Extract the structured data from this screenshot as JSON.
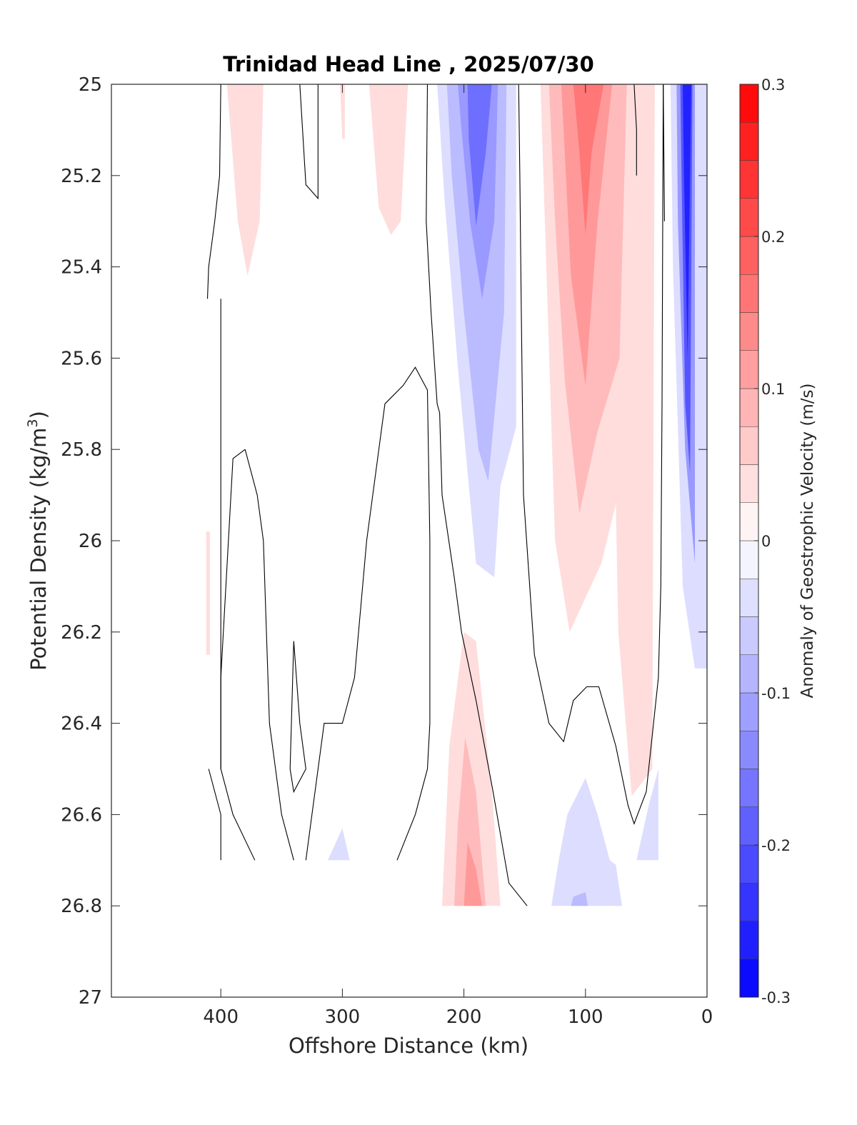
{
  "chart_data": {
    "type": "contourf",
    "title": "Trinidad Head Line , 2025/07/30",
    "xlabel": "Offshore Distance (km)",
    "ylabel_main": "Potential Density (kg/m",
    "ylabel_sup": "3",
    "ylabel_close": ")",
    "xlim": [
      490,
      0
    ],
    "ylim": [
      25,
      27
    ],
    "x_reversed": true,
    "y_reversed": true,
    "xticks": [
      400,
      300,
      200,
      100,
      0
    ],
    "xtick_labels": [
      "400",
      "300",
      "200",
      "100",
      "0"
    ],
    "yticks": [
      25,
      25.2,
      25.4,
      25.6,
      25.8,
      26,
      26.2,
      26.4,
      26.6,
      26.8,
      27
    ],
    "ytick_labels": [
      "25",
      "25.2",
      "25.4",
      "25.6",
      "25.8",
      "26",
      "26.2",
      "26.4",
      "26.6",
      "26.8",
      "27"
    ],
    "colorbar": {
      "label": "Anomaly of Geostrophic Velocity (m/s)",
      "range": [
        -0.3,
        0.3
      ],
      "levels": 24,
      "ticks": [
        0.3,
        0.2,
        0.1,
        0,
        -0.1,
        -0.2,
        -0.3
      ],
      "tick_labels": [
        "0.3",
        "0.2",
        "0.1",
        "0",
        "-0.1",
        "-0.2",
        "-0.3"
      ],
      "color_high": "#ff0000",
      "color_zero": "#ffffff",
      "color_low": "#0000ff"
    },
    "filled_regions": [
      {
        "name": "red-patch-380km",
        "value": 0.04,
        "polygon": [
          [
            395,
            25
          ],
          [
            365,
            25
          ],
          [
            368,
            25.3
          ],
          [
            378,
            25.42
          ],
          [
            386,
            25.3
          ]
        ]
      },
      {
        "name": "red-thin-300km",
        "value": 0.04,
        "polygon": [
          [
            302,
            25
          ],
          [
            298,
            25
          ],
          [
            298,
            25.12
          ],
          [
            300,
            25.12
          ]
        ]
      },
      {
        "name": "red-patch-265km",
        "value": 0.04,
        "polygon": [
          [
            278,
            25
          ],
          [
            246,
            25
          ],
          [
            252,
            25.3
          ],
          [
            260,
            25.33
          ],
          [
            270,
            25.27
          ]
        ]
      },
      {
        "name": "red-thin-410km",
        "value": 0.04,
        "polygon": [
          [
            412,
            25.98
          ],
          [
            409,
            25.98
          ],
          [
            409,
            26.25
          ],
          [
            412,
            26.25
          ]
        ]
      },
      {
        "name": "blue-jet-190km-l1",
        "value": -0.04,
        "polygon": [
          [
            222,
            25
          ],
          [
            157,
            25
          ],
          [
            157,
            25.75
          ],
          [
            170,
            25.88
          ],
          [
            175,
            26.08
          ],
          [
            190,
            26.05
          ],
          [
            205,
            25.62
          ],
          [
            216,
            25.25
          ]
        ]
      },
      {
        "name": "blue-jet-190km-l2",
        "value": -0.08,
        "polygon": [
          [
            214,
            25
          ],
          [
            165,
            25
          ],
          [
            167,
            25.5
          ],
          [
            180,
            25.87
          ],
          [
            188,
            25.8
          ],
          [
            200,
            25.5
          ],
          [
            210,
            25.2
          ]
        ]
      },
      {
        "name": "blue-jet-190km-l3",
        "value": -0.12,
        "polygon": [
          [
            205,
            25
          ],
          [
            172,
            25
          ],
          [
            175,
            25.3
          ],
          [
            185,
            25.47
          ],
          [
            195,
            25.3
          ],
          [
            202,
            25.1
          ]
        ]
      },
      {
        "name": "blue-jet-190km-l4",
        "value": -0.17,
        "polygon": [
          [
            197,
            25
          ],
          [
            177,
            25
          ],
          [
            182,
            25.15
          ],
          [
            190,
            25.31
          ],
          [
            196,
            25.12
          ]
        ]
      },
      {
        "name": "red-jet-100km-l1",
        "value": 0.04,
        "polygon": [
          [
            137,
            25
          ],
          [
            43,
            25
          ],
          [
            45,
            26.5
          ],
          [
            62,
            26.56
          ],
          [
            73,
            26.2
          ],
          [
            75,
            25.92
          ],
          [
            87,
            26.05
          ],
          [
            113,
            26.2
          ],
          [
            125,
            26
          ]
        ]
      },
      {
        "name": "red-jet-100km-l2",
        "value": 0.08,
        "polygon": [
          [
            130,
            25
          ],
          [
            66,
            25
          ],
          [
            72,
            25.6
          ],
          [
            90,
            25.76
          ],
          [
            105,
            25.94
          ],
          [
            117,
            25.65
          ],
          [
            125,
            25.3
          ]
        ]
      },
      {
        "name": "red-jet-100km-l3",
        "value": 0.12,
        "polygon": [
          [
            120,
            25
          ],
          [
            78,
            25
          ],
          [
            90,
            25.3
          ],
          [
            100,
            25.66
          ],
          [
            112,
            25.42
          ],
          [
            118,
            25.1
          ]
        ]
      },
      {
        "name": "red-jet-100km-l4",
        "value": 0.16,
        "polygon": [
          [
            110,
            25
          ],
          [
            85,
            25
          ],
          [
            95,
            25.15
          ],
          [
            100,
            25.33
          ],
          [
            105,
            25.15
          ]
        ]
      },
      {
        "name": "blue-coastal-l1",
        "value": -0.04,
        "polygon": [
          [
            30,
            25
          ],
          [
            0,
            25
          ],
          [
            0,
            26.28
          ],
          [
            10,
            26.28
          ],
          [
            20,
            26.1
          ],
          [
            28,
            25.4
          ]
        ]
      },
      {
        "name": "blue-coastal-l2",
        "value": -0.12,
        "polygon": [
          [
            25,
            25
          ],
          [
            10,
            25
          ],
          [
            10,
            26.05
          ],
          [
            18,
            25.8
          ],
          [
            24,
            25.3
          ]
        ]
      },
      {
        "name": "blue-coastal-l3",
        "value": -0.2,
        "polygon": [
          [
            22,
            25
          ],
          [
            12,
            25
          ],
          [
            14,
            25.85
          ],
          [
            18,
            25.7
          ],
          [
            21,
            25.2
          ]
        ]
      },
      {
        "name": "blue-coastal-l4",
        "value": -0.26,
        "polygon": [
          [
            20,
            25
          ],
          [
            13,
            25
          ],
          [
            16,
            25.6
          ],
          [
            19,
            25.2
          ]
        ]
      },
      {
        "name": "red-deep-200km-l1",
        "value": 0.04,
        "polygon": [
          [
            218,
            26.8
          ],
          [
            170,
            26.8
          ],
          [
            177,
            26.55
          ],
          [
            190,
            26.22
          ],
          [
            200,
            26.2
          ],
          [
            212,
            26.45
          ]
        ]
      },
      {
        "name": "red-deep-200km-l2",
        "value": 0.08,
        "polygon": [
          [
            208,
            26.8
          ],
          [
            182,
            26.8
          ],
          [
            190,
            26.55
          ],
          [
            199,
            26.43
          ],
          [
            205,
            26.62
          ]
        ]
      },
      {
        "name": "red-deep-200km-l3",
        "value": 0.12,
        "polygon": [
          [
            200,
            26.8
          ],
          [
            185,
            26.8
          ],
          [
            190,
            26.72
          ],
          [
            197,
            26.66
          ]
        ]
      },
      {
        "name": "blue-deep-100km-l1",
        "value": -0.04,
        "polygon": [
          [
            128,
            26.8
          ],
          [
            70,
            26.8
          ],
          [
            75,
            26.71
          ],
          [
            80,
            26.7
          ],
          [
            90,
            26.6
          ],
          [
            100,
            26.52
          ],
          [
            115,
            26.6
          ],
          [
            122,
            26.7
          ]
        ]
      },
      {
        "name": "blue-deep-100km-l2",
        "value": -0.08,
        "polygon": [
          [
            112,
            26.8
          ],
          [
            98,
            26.8
          ],
          [
            100,
            26.77
          ],
          [
            110,
            26.78
          ]
        ]
      },
      {
        "name": "blue-deep-45km-l1",
        "value": -0.04,
        "polygon": [
          [
            58,
            26.7
          ],
          [
            40,
            26.7
          ],
          [
            40,
            26.5
          ],
          [
            48,
            26.58
          ]
        ]
      },
      {
        "name": "blue-deep-300km-l1",
        "value": -0.04,
        "polygon": [
          [
            312,
            26.7
          ],
          [
            294,
            26.7
          ],
          [
            300,
            26.63
          ]
        ]
      }
    ],
    "zero_contours": [
      [
        [
          400,
          25
        ],
        [
          401,
          25.2
        ],
        [
          405,
          25.3
        ],
        [
          410,
          25.4
        ],
        [
          411,
          25.47
        ]
      ],
      [
        [
          335,
          25
        ],
        [
          330,
          25.22
        ],
        [
          320,
          25.25
        ],
        [
          320,
          25
        ]
      ],
      [
        [
          230,
          25
        ],
        [
          231,
          25.3
        ],
        [
          227,
          25.5
        ],
        [
          222,
          25.7
        ],
        [
          220,
          25.72
        ],
        [
          218,
          25.9
        ],
        [
          208,
          26.08
        ],
        [
          202,
          26.2
        ],
        [
          190,
          26.35
        ],
        [
          176,
          26.55
        ],
        [
          163,
          26.75
        ],
        [
          148,
          26.8
        ]
      ],
      [
        [
          155,
          25
        ],
        [
          154,
          25.2
        ],
        [
          153,
          25.45
        ],
        [
          151,
          25.9
        ],
        [
          142,
          26.25
        ],
        [
          130,
          26.4
        ],
        [
          118,
          26.44
        ],
        [
          110,
          26.35
        ],
        [
          99,
          26.32
        ],
        [
          89,
          26.32
        ],
        [
          75,
          26.45
        ],
        [
          65,
          26.58
        ],
        [
          60,
          26.62
        ],
        [
          50,
          26.55
        ],
        [
          40,
          26.3
        ],
        [
          38,
          26.1
        ],
        [
          37,
          25.7
        ],
        [
          36,
          25
        ],
        [
          36,
          24.999
        ]
      ],
      [
        [
          60,
          25
        ],
        [
          58,
          25.1
        ],
        [
          58,
          25.2
        ]
      ],
      [
        [
          36,
          25
        ],
        [
          35,
          25.3
        ]
      ],
      [
        [
          410,
          26.5
        ],
        [
          400,
          26.6
        ],
        [
          400,
          26.7
        ]
      ],
      [
        [
          400,
          25.47
        ],
        [
          400,
          26.5
        ],
        [
          390,
          26.6
        ],
        [
          372,
          26.7
        ]
      ],
      [
        [
          380,
          25.8
        ],
        [
          390,
          25.82
        ],
        [
          400,
          26.3
        ],
        [
          400,
          26.5
        ]
      ],
      [
        [
          380,
          25.8
        ],
        [
          370,
          25.9
        ],
        [
          365,
          26.0
        ],
        [
          360,
          26.4
        ],
        [
          350,
          26.6
        ],
        [
          340,
          26.7
        ]
      ],
      [
        [
          340,
          26.22
        ],
        [
          343,
          26.5
        ],
        [
          340,
          26.55
        ],
        [
          330,
          26.5
        ],
        [
          335,
          26.4
        ],
        [
          340,
          26.22
        ]
      ],
      [
        [
          330,
          26.7
        ],
        [
          325,
          26.6
        ],
        [
          315,
          26.4
        ],
        [
          300,
          26.4
        ],
        [
          290,
          26.3
        ],
        [
          280,
          26.0
        ],
        [
          265,
          25.7
        ],
        [
          250,
          25.66
        ],
        [
          240,
          25.62
        ],
        [
          230,
          25.67
        ],
        [
          228,
          26.0
        ],
        [
          228,
          26.4
        ],
        [
          230,
          26.5
        ],
        [
          240,
          26.6
        ],
        [
          255,
          26.7
        ]
      ]
    ]
  }
}
